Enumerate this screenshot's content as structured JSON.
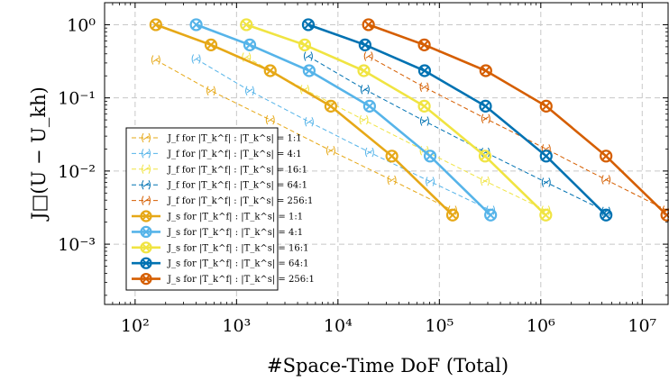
{
  "chart_data": {
    "type": "line",
    "xlabel": "#Space-Time DoF (Total)",
    "ylabel": "J□(U − U_kh)",
    "x_scale": "log",
    "y_scale": "log",
    "xlim": [
      50,
      18000000
    ],
    "ylim": [
      0.00015,
      2
    ],
    "x_ticks": [
      100,
      1000,
      10000,
      100000,
      1000000,
      10000000
    ],
    "x_tick_labels": [
      "10²",
      "10³",
      "10⁴",
      "10⁵",
      "10⁶",
      "10⁷"
    ],
    "y_ticks": [
      1,
      0.1,
      0.01,
      0.001
    ],
    "y_tick_labels": [
      "10⁰",
      "10⁻¹",
      "10⁻²",
      "10⁻³"
    ],
    "grid": true,
    "legend_position": "bottom-left",
    "series": [
      {
        "name": "J_f for |T_k^f| : |T_k^s| = 1:1",
        "style": "dashed",
        "color": "#e6a817",
        "x": [
          160,
          560,
          2150,
          8500,
          34000,
          135000
        ],
        "y": [
          0.33,
          0.125,
          0.05,
          0.019,
          0.0075,
          0.0029
        ]
      },
      {
        "name": "J_f for |T_k^f| : |T_k^s| = 4:1",
        "style": "dashed",
        "color": "#56b4e9",
        "x": [
          400,
          1350,
          5200,
          20500,
          81000,
          320000
        ],
        "y": [
          0.34,
          0.125,
          0.047,
          0.018,
          0.0072,
          0.0029
        ]
      },
      {
        "name": "J_f for |T_k^f| : |T_k^s| = 16:1",
        "style": "dashed",
        "color": "#f0e442",
        "x": [
          1250,
          4700,
          18000,
          71000,
          282000,
          1120000
        ],
        "y": [
          0.36,
          0.13,
          0.05,
          0.019,
          0.0073,
          0.0029
        ]
      },
      {
        "name": "J_f for |T_k^f| : |T_k^s| = 64:1",
        "style": "dashed",
        "color": "#0072b2",
        "x": [
          5100,
          18500,
          71500,
          285000,
          1130000,
          4400000
        ],
        "y": [
          0.37,
          0.13,
          0.048,
          0.018,
          0.007,
          0.0028
        ]
      },
      {
        "name": "J_f for |T_k^f| : |T_k^s| = 256:1",
        "style": "dashed",
        "color": "#d55e00",
        "x": [
          20000,
          71000,
          287000,
          1130000,
          4400000,
          17500000
        ],
        "y": [
          0.37,
          0.14,
          0.052,
          0.02,
          0.0076,
          0.0029
        ]
      },
      {
        "name": "J_s for |T_k^f| : |T_k^s| = 1:1",
        "style": "solid",
        "color": "#e6a817",
        "x": [
          160,
          560,
          2150,
          8500,
          34000,
          135000
        ],
        "y": [
          1,
          0.53,
          0.235,
          0.077,
          0.016,
          0.0025
        ]
      },
      {
        "name": "J_s for |T_k^f| : |T_k^s| = 4:1",
        "style": "solid",
        "color": "#56b4e9",
        "x": [
          400,
          1350,
          5200,
          20500,
          81000,
          320000
        ],
        "y": [
          1,
          0.53,
          0.235,
          0.077,
          0.016,
          0.0025
        ]
      },
      {
        "name": "J_s for |T_k^f| : |T_k^s| = 16:1",
        "style": "solid",
        "color": "#f0e442",
        "x": [
          1250,
          4700,
          18000,
          71000,
          282000,
          1120000
        ],
        "y": [
          1,
          0.53,
          0.235,
          0.077,
          0.016,
          0.0025
        ]
      },
      {
        "name": "J_s for |T_k^f| : |T_k^s| = 64:1",
        "style": "solid",
        "color": "#0072b2",
        "x": [
          5100,
          18500,
          71500,
          285000,
          1130000,
          4400000
        ],
        "y": [
          1,
          0.53,
          0.235,
          0.077,
          0.016,
          0.0025
        ]
      },
      {
        "name": "J_s for |T_k^f| : |T_k^s| = 256:1",
        "style": "solid",
        "color": "#d55e00",
        "x": [
          20000,
          71000,
          287000,
          1130000,
          4400000,
          17500000
        ],
        "y": [
          1,
          0.53,
          0.235,
          0.077,
          0.016,
          0.0025
        ]
      }
    ]
  }
}
